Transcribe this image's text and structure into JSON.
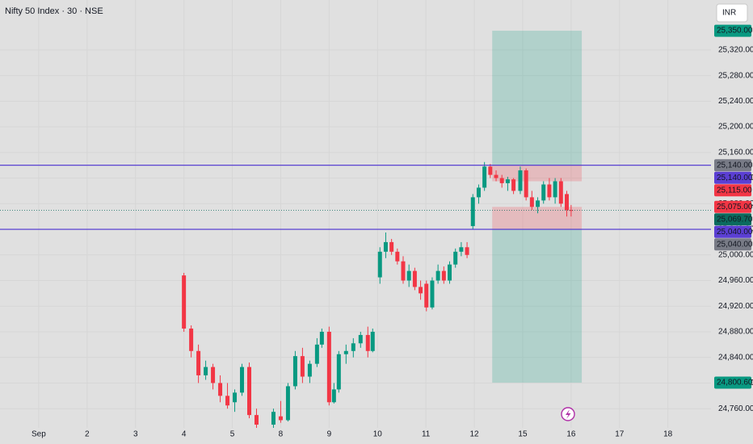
{
  "chart_data": {
    "type": "candlestick",
    "title": "Nifty 50 Index · 30 · NSE",
    "currency": "INR",
    "up_color": "#089981",
    "down_color": "#f23645",
    "xlim": [
      -0.8,
      13.89
    ],
    "xticks": [
      {
        "value": 0,
        "label": "Sep"
      },
      {
        "value": 1,
        "label": "2"
      },
      {
        "value": 2,
        "label": "3"
      },
      {
        "value": 3,
        "label": "4"
      },
      {
        "value": 4,
        "label": "5"
      },
      {
        "value": 5,
        "label": "8"
      },
      {
        "value": 6,
        "label": "9"
      },
      {
        "value": 7,
        "label": "10"
      },
      {
        "value": 8,
        "label": "11"
      },
      {
        "value": 9,
        "label": "12"
      },
      {
        "value": 10,
        "label": "15"
      },
      {
        "value": 11,
        "label": "16"
      },
      {
        "value": 12,
        "label": "17"
      },
      {
        "value": 13,
        "label": "18"
      }
    ],
    "ylim": [
      24730,
      25398
    ],
    "yticks": [
      {
        "value": 24760,
        "label": "24,760.00"
      },
      {
        "value": 24800,
        "label": "24,800.00"
      },
      {
        "value": 24840,
        "label": "24,840.00"
      },
      {
        "value": 24880,
        "label": "24,880.00"
      },
      {
        "value": 24920,
        "label": "24,920.00"
      },
      {
        "value": 24960,
        "label": "24,960.00"
      },
      {
        "value": 25000,
        "label": "25,000.00"
      },
      {
        "value": 25040,
        "label": "25,040.00"
      },
      {
        "value": 25080,
        "label": "25,080.00"
      },
      {
        "value": 25120,
        "label": "25,120.00"
      },
      {
        "value": 25160,
        "label": "25,160.00"
      },
      {
        "value": 25200,
        "label": "25,200.00"
      },
      {
        "value": 25240,
        "label": "25,240.00"
      },
      {
        "value": 25280,
        "label": "25,280.00"
      },
      {
        "value": 25320,
        "label": "25,320.00"
      }
    ],
    "grid": true,
    "x": [
      3.0,
      3.15,
      3.3,
      3.45,
      3.6,
      3.75,
      3.9,
      4.05,
      4.2,
      4.35,
      4.5,
      4.85,
      5.0,
      5.15,
      5.3,
      5.45,
      5.6,
      5.75,
      5.85,
      6.0,
      6.1,
      6.2,
      6.35,
      6.5,
      6.65,
      6.8,
      6.9,
      7.05,
      7.17,
      7.29,
      7.41,
      7.53,
      7.65,
      7.77,
      7.89,
      8.01,
      8.13,
      8.25,
      8.37,
      8.49,
      8.61,
      8.73,
      8.85,
      8.97,
      9.09,
      9.21,
      9.33,
      9.45,
      9.57,
      9.69,
      9.81,
      9.95,
      10.07,
      10.19,
      10.31,
      10.43,
      10.55,
      10.67,
      10.79,
      10.91,
      11.0
    ],
    "open": [
      24968,
      24885,
      24850,
      24812,
      24825,
      24800,
      24780,
      24770,
      24785,
      24825,
      24750,
      24735,
      24748,
      24742,
      24795,
      24842,
      24810,
      24830,
      24860,
      24880,
      24770,
      24790,
      24845,
      24850,
      24862,
      24875,
      24850,
      24965,
      25005,
      25020,
      25005,
      24990,
      24960,
      24975,
      24950,
      24955,
      24918,
      24960,
      24975,
      24960,
      24985,
      25005,
      25012,
      25045,
      25090,
      25105,
      25138,
      25125,
      25120,
      25112,
      25118,
      25100,
      25132,
      25090,
      25075,
      25085,
      25110,
      25090,
      25115,
      25095,
      25070
    ],
    "high": [
      24972,
      24890,
      24860,
      24835,
      24830,
      24812,
      24800,
      24790,
      24830,
      24832,
      24760,
      24760,
      24772,
      24800,
      24850,
      24855,
      24835,
      24870,
      24885,
      24888,
      24800,
      24850,
      24860,
      24870,
      24880,
      24888,
      24885,
      25012,
      25035,
      25025,
      25010,
      24998,
      24985,
      24980,
      24960,
      24960,
      24965,
      24985,
      24982,
      24990,
      25010,
      25020,
      25020,
      25095,
      25110,
      25145,
      25142,
      25132,
      25125,
      25122,
      25120,
      25138,
      25135,
      25100,
      25090,
      25115,
      25120,
      25120,
      25120,
      25100,
      25078
    ],
    "low": [
      24880,
      24840,
      24800,
      24805,
      24790,
      24770,
      24760,
      24755,
      24780,
      24745,
      24725,
      24725,
      24738,
      24740,
      24790,
      24800,
      24800,
      24825,
      24855,
      24765,
      24768,
      24785,
      24830,
      24840,
      24855,
      24840,
      24848,
      24955,
      24995,
      25000,
      24985,
      24955,
      24950,
      24945,
      24930,
      24912,
      24915,
      24955,
      24955,
      24955,
      24980,
      24998,
      24995,
      25040,
      25080,
      25100,
      25120,
      25115,
      25105,
      25100,
      25095,
      25095,
      25085,
      25070,
      25065,
      25080,
      25085,
      25080,
      25075,
      25060,
      25060
    ],
    "close": [
      24885,
      24850,
      24812,
      24825,
      24800,
      24780,
      24765,
      24785,
      24825,
      24750,
      24735,
      24755,
      24742,
      24795,
      24842,
      24810,
      24830,
      24860,
      24880,
      24770,
      24790,
      24845,
      24850,
      24862,
      24875,
      24850,
      24880,
      25005,
      25020,
      25005,
      24990,
      24960,
      24975,
      24950,
      24940,
      24918,
      24960,
      24975,
      24960,
      24985,
      25005,
      25012,
      25000,
      25090,
      25105,
      25138,
      25125,
      25120,
      25112,
      25118,
      25100,
      25132,
      25090,
      25075,
      25085,
      25110,
      25090,
      25115,
      25080,
      25070,
      25069.7
    ],
    "zones": [
      {
        "from": 25140,
        "to": 25350,
        "x_range": [
          9.37,
          11.22
        ],
        "color": "#089981"
      },
      {
        "from": 25115,
        "to": 25140,
        "x_range": [
          9.37,
          11.22
        ],
        "color": "#f23645"
      },
      {
        "from": 25040,
        "to": 25075,
        "x_range": [
          9.37,
          11.22
        ],
        "color": "#f23645"
      },
      {
        "from": 24800.6,
        "to": 25040,
        "x_range": [
          9.37,
          11.22
        ],
        "color": "#089981"
      }
    ],
    "horizontal_lines": [
      {
        "value": 25140,
        "color": "#4a2fd0"
      },
      {
        "value": 25040,
        "color": "#4a2fd0"
      }
    ],
    "current_price": 25069.7,
    "price_labels": [
      {
        "value": 25350,
        "label": "25,350.00",
        "color": "#089981"
      },
      {
        "value": 25140,
        "label": "25,140.00",
        "color": "#787b86"
      },
      {
        "value": 25140,
        "label": "25,140.00",
        "color": "#5b3fd3"
      },
      {
        "value": 25115,
        "label": "25,115.00",
        "color": "#f23645"
      },
      {
        "value": 25075,
        "label": "25,075.00",
        "color": "#f23645"
      },
      {
        "value": 25069.7,
        "label": "25,069.70",
        "color": "#0b6b5e"
      },
      {
        "value": 25040,
        "label": "25,040.00",
        "color": "#5b3fd3"
      },
      {
        "value": 25040,
        "label": "25,040.00",
        "color": "#787b86"
      },
      {
        "value": 24800.6,
        "label": "24,800.60",
        "color": "#089981"
      }
    ]
  }
}
